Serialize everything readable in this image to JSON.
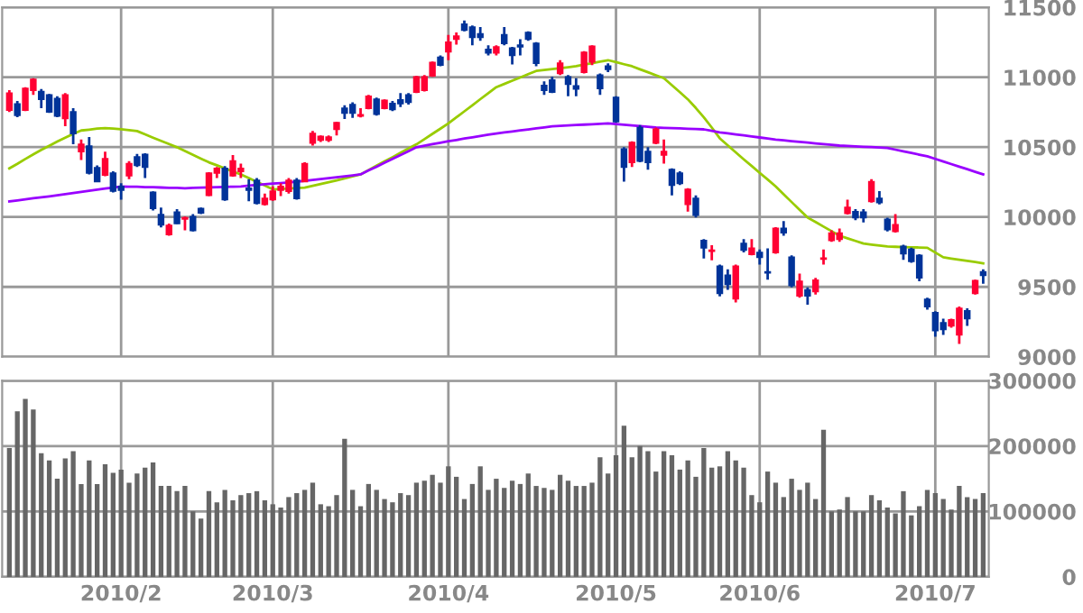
{
  "chart_data": [
    {
      "type": "candlestick",
      "tick_labels": "y",
      "grid": true,
      "categories": [
        null,
        null,
        null,
        null,
        null,
        null,
        null,
        null,
        null,
        null,
        null,
        null,
        null,
        null,
        "2010/2",
        null,
        null,
        null,
        null,
        null,
        null,
        null,
        null,
        null,
        null,
        null,
        null,
        null,
        null,
        null,
        null,
        null,
        null,
        "2010/3",
        null,
        null,
        null,
        null,
        null,
        null,
        null,
        null,
        null,
        null,
        null,
        null,
        null,
        null,
        null,
        null,
        null,
        null,
        null,
        null,
        null,
        "2010/4",
        null,
        null,
        null,
        null,
        null,
        null,
        null,
        null,
        null,
        null,
        null,
        null,
        null,
        null,
        null,
        null,
        null,
        null,
        null,
        null,
        "2010/5",
        null,
        null,
        null,
        null,
        null,
        null,
        null,
        null,
        null,
        null,
        null,
        null,
        null,
        null,
        null,
        null,
        null,
        "2010/6",
        null,
        null,
        null,
        null,
        null,
        null,
        null,
        null,
        null,
        null,
        null,
        null,
        null,
        null,
        null,
        null,
        null,
        null,
        null,
        null,
        null,
        "2010/7",
        null,
        null,
        null,
        null,
        null,
        null
      ],
      "ylim": [
        9000,
        11500
      ],
      "yticks": [
        9000,
        9500,
        10000,
        10500,
        11000,
        11500
      ],
      "ohlc": [
        [
          10765,
          10907,
          10752,
          10886
        ],
        [
          10808,
          10830,
          10714,
          10727
        ],
        [
          10765,
          10928,
          10757,
          10920
        ],
        [
          10907,
          10993,
          10873,
          10984
        ],
        [
          10898,
          10916,
          10778,
          10842
        ],
        [
          10873,
          10881,
          10744,
          10752
        ],
        [
          10847,
          10864,
          10714,
          10722
        ],
        [
          10705,
          10886,
          10649,
          10873
        ],
        [
          10752,
          10778,
          10520,
          10597
        ],
        [
          10468,
          10554,
          10408,
          10520
        ],
        [
          10507,
          10572,
          10305,
          10314
        ],
        [
          10352,
          10369,
          10249,
          10253
        ],
        [
          10301,
          10468,
          10292,
          10417
        ],
        [
          10314,
          10327,
          10176,
          10185
        ],
        [
          10219,
          10241,
          10124,
          10193
        ],
        [
          10296,
          10400,
          10270,
          10382
        ],
        [
          10430,
          10451,
          10357,
          10370
        ],
        [
          10447,
          10456,
          10279,
          10357
        ],
        [
          10176,
          10184,
          10047,
          10061
        ],
        [
          10017,
          10068,
          9926,
          9944
        ],
        [
          9875,
          9953,
          9866,
          9940
        ],
        [
          10034,
          10056,
          9950,
          9953
        ],
        [
          9986,
          10003,
          9904,
          9994
        ],
        [
          10003,
          10020,
          9896,
          9904
        ],
        [
          10060,
          10068,
          10021,
          10030
        ],
        [
          10155,
          10320,
          10150,
          10314
        ],
        [
          10314,
          10357,
          10279,
          10348
        ],
        [
          10348,
          10365,
          10116,
          10124
        ],
        [
          10296,
          10443,
          10288,
          10400
        ],
        [
          10326,
          10382,
          10279,
          10348
        ],
        [
          10206,
          10270,
          10112,
          10193
        ],
        [
          10262,
          10279,
          10090,
          10099
        ],
        [
          10090,
          10167,
          10082,
          10133
        ],
        [
          10124,
          10219,
          10116,
          10184
        ],
        [
          10193,
          10241,
          10150,
          10219
        ],
        [
          10184,
          10279,
          10167,
          10262
        ],
        [
          10262,
          10279,
          10124,
          10133
        ],
        [
          10253,
          10391,
          10249,
          10382
        ],
        [
          10529,
          10615,
          10511,
          10597
        ],
        [
          10550,
          10584,
          10537,
          10576
        ],
        [
          10550,
          10584,
          10537,
          10572
        ],
        [
          10627,
          10680,
          10584,
          10675
        ],
        [
          10778,
          10800,
          10701,
          10744
        ],
        [
          10804,
          10821,
          10709,
          10744
        ],
        [
          10723,
          10778,
          10713,
          10731
        ],
        [
          10778,
          10873,
          10770,
          10864
        ],
        [
          10842,
          10855,
          10726,
          10735
        ],
        [
          10778,
          10842,
          10770,
          10834
        ],
        [
          10812,
          10830,
          10757,
          10770
        ],
        [
          10838,
          10886,
          10787,
          10812
        ],
        [
          10873,
          10886,
          10804,
          10821
        ],
        [
          10894,
          11010,
          10886,
          11002
        ],
        [
          10907,
          11015,
          10898,
          11002
        ],
        [
          11010,
          11113,
          11002,
          11105
        ],
        [
          11143,
          11156,
          11079,
          11087
        ],
        [
          11182,
          11303,
          11122,
          11251
        ],
        [
          11272,
          11320,
          11234,
          11294
        ],
        [
          11380,
          11406,
          11328,
          11337
        ],
        [
          11359,
          11371,
          11229,
          11285
        ],
        [
          11311,
          11359,
          11260,
          11285
        ],
        [
          11199,
          11229,
          11156,
          11174
        ],
        [
          11174,
          11229,
          11156,
          11217
        ],
        [
          11303,
          11359,
          11229,
          11242
        ],
        [
          11208,
          11217,
          11092,
          11156
        ],
        [
          11229,
          11272,
          11156,
          11217
        ],
        [
          11320,
          11328,
          11260,
          11272
        ],
        [
          11242,
          11251,
          11079,
          11100
        ],
        [
          10941,
          10971,
          10873,
          10907
        ],
        [
          10980,
          11002,
          10886,
          10894
        ],
        [
          11027,
          11122,
          11015,
          11100
        ],
        [
          11002,
          11015,
          10864,
          10950
        ],
        [
          10937,
          10993,
          10864,
          10916
        ],
        [
          11036,
          11186,
          11027,
          11178
        ],
        [
          11109,
          11229,
          11087,
          11221
        ],
        [
          11015,
          11027,
          10873,
          10920
        ],
        [
          11079,
          11100,
          11036,
          11057
        ],
        [
          10855,
          10864,
          10675,
          10683
        ],
        [
          10486,
          10499,
          10253,
          10357
        ],
        [
          10391,
          10542,
          10357,
          10533
        ],
        [
          10640,
          10658,
          10391,
          10400
        ],
        [
          10468,
          10499,
          10339,
          10391
        ],
        [
          10529,
          10640,
          10520,
          10628
        ],
        [
          10443,
          10554,
          10382,
          10468
        ],
        [
          10339,
          10348,
          10155,
          10228
        ],
        [
          10314,
          10327,
          10228,
          10241
        ],
        [
          10090,
          10206,
          10038,
          10198
        ],
        [
          10133,
          10155,
          9996,
          10013
        ],
        [
          9832,
          9841,
          9703,
          9780
        ],
        [
          9755,
          9798,
          9690,
          9763
        ],
        [
          9647,
          9660,
          9432,
          9454
        ],
        [
          9583,
          9625,
          9479,
          9518
        ],
        [
          9415,
          9660,
          9389,
          9647
        ],
        [
          9810,
          9841,
          9746,
          9763
        ],
        [
          9733,
          9841,
          9725,
          9776
        ],
        [
          9746,
          9768,
          9660,
          9712
        ],
        [
          9608,
          9776,
          9552,
          9600
        ],
        [
          9746,
          9927,
          9737,
          9918
        ],
        [
          9918,
          9970,
          9866,
          9888
        ],
        [
          9712,
          9725,
          9497,
          9510
        ],
        [
          9436,
          9595,
          9423,
          9540
        ],
        [
          9479,
          9497,
          9372,
          9436
        ],
        [
          9466,
          9565,
          9445,
          9548
        ],
        [
          9699,
          9768,
          9660,
          9705
        ],
        [
          9832,
          9905,
          9823,
          9884
        ],
        [
          9841,
          9918,
          9823,
          9884
        ],
        [
          10026,
          10124,
          10017,
          10069
        ],
        [
          10038,
          10056,
          9978,
          9995
        ],
        [
          10034,
          10056,
          9961,
          9995
        ],
        [
          10112,
          10271,
          10103,
          10253
        ],
        [
          10133,
          10185,
          10090,
          10103
        ],
        [
          9983,
          9995,
          9897,
          9910
        ],
        [
          9897,
          10021,
          9888,
          9944
        ],
        [
          9789,
          9802,
          9694,
          9737
        ],
        [
          9768,
          9780,
          9673,
          9682
        ],
        [
          9725,
          9733,
          9540,
          9565
        ],
        [
          9410,
          9423,
          9337,
          9359
        ],
        [
          9316,
          9325,
          9144,
          9187
        ],
        [
          9243,
          9273,
          9157,
          9195
        ],
        [
          9221,
          9273,
          9208,
          9264
        ],
        [
          9157,
          9359,
          9092,
          9346
        ],
        [
          9329,
          9346,
          9221,
          9273
        ],
        [
          9454,
          9552,
          9445,
          9544
        ],
        [
          9608,
          9625,
          9522,
          9583
        ]
      ],
      "colors": [
        "#ff0033",
        "#003399",
        "#ff0033",
        "#ff0033",
        "#003399",
        "#003399",
        "#003399",
        "#ff0033",
        "#003399",
        "#ff0033",
        "#003399",
        "#003399",
        "#ff0033",
        "#003399",
        "#003399",
        "#ff0033",
        "#003399",
        "#003399",
        "#003399",
        "#003399",
        "#ff0033",
        "#003399",
        "#ff0033",
        "#003399",
        "#003399",
        "#ff0033",
        "#ff0033",
        "#003399",
        "#ff0033",
        "#ff0033",
        "#003399",
        "#003399",
        "#ff0033",
        "#ff0033",
        "#ff0033",
        "#ff0033",
        "#003399",
        "#ff0033",
        "#ff0033",
        "#ff0033",
        "#ff0033",
        "#ff0033",
        "#003399",
        "#003399",
        "#ff0033",
        "#ff0033",
        "#003399",
        "#ff0033",
        "#003399",
        "#003399",
        "#003399",
        "#ff0033",
        "#ff0033",
        "#ff0033",
        "#003399",
        "#ff0033",
        "#ff0033",
        "#003399",
        "#003399",
        "#003399",
        "#003399",
        "#ff0033",
        "#003399",
        "#003399",
        "#003399",
        "#003399",
        "#003399",
        "#003399",
        "#003399",
        "#ff0033",
        "#003399",
        "#003399",
        "#ff0033",
        "#ff0033",
        "#003399",
        "#003399",
        "#003399",
        "#003399",
        "#ff0033",
        "#003399",
        "#003399",
        "#ff0033",
        "#ff0033",
        "#003399",
        "#003399",
        "#ff0033",
        "#003399",
        "#003399",
        "#ff0033",
        "#003399",
        "#003399",
        "#ff0033",
        "#003399",
        "#ff0033",
        "#003399",
        "#003399",
        "#ff0033",
        "#003399",
        "#003399",
        "#ff0033",
        "#003399",
        "#ff0033",
        "#ff0033",
        "#ff0033",
        "#ff0033",
        "#ff0033",
        "#003399",
        "#003399",
        "#ff0033",
        "#003399",
        "#003399",
        "#ff0033",
        "#003399",
        "#003399",
        "#003399",
        "#003399",
        "#003399",
        "#003399",
        "#ff0033",
        "#ff0033",
        "#003399",
        "#ff0033",
        "#003399"
      ],
      "series": [
        {
          "type": "line",
          "color": "#99cc00",
          "values": [
            10348,
            10380,
            10415,
            10448,
            10480,
            10510,
            10540,
            10568,
            10595,
            10619,
            10625,
            10632,
            10636,
            10633,
            10628,
            10622,
            10615,
            10592,
            10568,
            10545,
            10522,
            10499,
            10472,
            10445,
            10418,
            10391,
            10370,
            10348,
            10326,
            10305,
            10278,
            10251,
            10225,
            10198,
            10201,
            10204,
            10207,
            10210,
            10223,
            10236,
            10249,
            10262,
            10276,
            10290,
            10305,
            10336,
            10367,
            10398,
            10428,
            10459,
            10490,
            10520,
            10557,
            10595,
            10632,
            10670,
            10713,
            10756,
            10799,
            10843,
            10886,
            10929,
            10952,
            10975,
            10998,
            11022,
            11045,
            11052,
            11058,
            11065,
            11072,
            11079,
            11090,
            11100,
            11111,
            11122,
            11108,
            11093,
            11079,
            11057,
            11036,
            11014,
            10993,
            10943,
            10893,
            10842,
            10780,
            10713,
            10640,
            10563,
            10513,
            10463,
            10413,
            10365,
            10316,
            10268,
            10219,
            10163,
            10107,
            10052,
            9996,
            9964,
            9931,
            9899,
            9866,
            9847,
            9829,
            9810,
            9803,
            9796,
            9789,
            9787,
            9785,
            9783,
            9782,
            9780,
            9746,
            9712,
            9703,
            9695,
            9686,
            9678,
            9669
          ]
        },
        {
          "type": "line",
          "color": "#9900ff",
          "values": [
            10112,
            10119,
            10127,
            10134,
            10141,
            10148,
            10156,
            10163,
            10171,
            10179,
            10187,
            10195,
            10203,
            10211,
            10219,
            10217,
            10216,
            10214,
            10213,
            10211,
            10209,
            10208,
            10206,
            10208,
            10210,
            10212,
            10214,
            10215,
            10217,
            10219,
            10224,
            10229,
            10234,
            10239,
            10243,
            10248,
            10253,
            10258,
            10265,
            10271,
            10278,
            10285,
            10291,
            10298,
            10305,
            10333,
            10360,
            10388,
            10416,
            10443,
            10471,
            10499,
            10510,
            10521,
            10531,
            10542,
            10551,
            10561,
            10570,
            10579,
            10589,
            10598,
            10605,
            10612,
            10620,
            10627,
            10634,
            10641,
            10649,
            10652,
            10655,
            10658,
            10661,
            10664,
            10667,
            10670,
            10665,
            10660,
            10655,
            10650,
            10645,
            10640,
            10638,
            10636,
            10634,
            10631,
            10629,
            10627,
            10616,
            10606,
            10599,
            10591,
            10584,
            10576,
            10569,
            10561,
            10554,
            10549,
            10543,
            10538,
            10532,
            10527,
            10522,
            10516,
            10511,
            10508,
            10505,
            10502,
            10500,
            10497,
            10494,
            10482,
            10470,
            10458,
            10446,
            10434,
            10416,
            10397,
            10379,
            10360,
            10342,
            10323,
            10305
          ]
        }
      ]
    },
    {
      "type": "bar",
      "grid": true,
      "color": "#666666",
      "categories": [
        null,
        null,
        null,
        null,
        null,
        null,
        null,
        null,
        null,
        null,
        null,
        null,
        null,
        null,
        "2010/2",
        null,
        null,
        null,
        null,
        null,
        null,
        null,
        null,
        null,
        null,
        null,
        null,
        null,
        null,
        null,
        null,
        null,
        null,
        "2010/3",
        null,
        null,
        null,
        null,
        null,
        null,
        null,
        null,
        null,
        null,
        null,
        null,
        null,
        null,
        null,
        null,
        null,
        null,
        null,
        null,
        null,
        "2010/4",
        null,
        null,
        null,
        null,
        null,
        null,
        null,
        null,
        null,
        null,
        null,
        null,
        null,
        null,
        null,
        null,
        null,
        null,
        null,
        null,
        "2010/5",
        null,
        null,
        null,
        null,
        null,
        null,
        null,
        null,
        null,
        null,
        null,
        null,
        null,
        null,
        null,
        null,
        null,
        "2010/6",
        null,
        null,
        null,
        null,
        null,
        null,
        null,
        null,
        null,
        null,
        null,
        null,
        null,
        null,
        null,
        null,
        null,
        null,
        null,
        null,
        null,
        "2010/7",
        null,
        null,
        null,
        null,
        null,
        null
      ],
      "ylim": [
        0,
        300000
      ],
      "yticks": [
        0,
        100000,
        200000,
        300000
      ],
      "values": [
        197000,
        253000,
        272000,
        256000,
        189000,
        178000,
        150000,
        181000,
        192000,
        142000,
        178000,
        142000,
        172000,
        159000,
        164000,
        144000,
        158000,
        167000,
        175000,
        139000,
        139000,
        131000,
        139000,
        100000,
        89000,
        131000,
        114000,
        133000,
        117000,
        125000,
        128000,
        131000,
        117000,
        111000,
        106000,
        122000,
        128000,
        133000,
        144000,
        111000,
        108000,
        125000,
        211000,
        133000,
        108000,
        142000,
        133000,
        119000,
        114000,
        128000,
        125000,
        144000,
        147000,
        156000,
        144000,
        169000,
        153000,
        119000,
        142000,
        169000,
        133000,
        150000,
        136000,
        147000,
        142000,
        158000,
        139000,
        136000,
        133000,
        156000,
        147000,
        139000,
        139000,
        144000,
        183000,
        158000,
        186000,
        231000,
        183000,
        200000,
        192000,
        161000,
        192000,
        186000,
        164000,
        178000,
        153000,
        197000,
        167000,
        169000,
        192000,
        178000,
        167000,
        125000,
        114000,
        161000,
        144000,
        122000,
        150000,
        133000,
        144000,
        119000,
        225000,
        100000,
        103000,
        122000,
        100000,
        100000,
        125000,
        117000,
        106000,
        97000,
        131000,
        94000,
        108000,
        133000,
        128000,
        119000,
        103000,
        139000,
        122000,
        119000,
        128000
      ]
    }
  ]
}
